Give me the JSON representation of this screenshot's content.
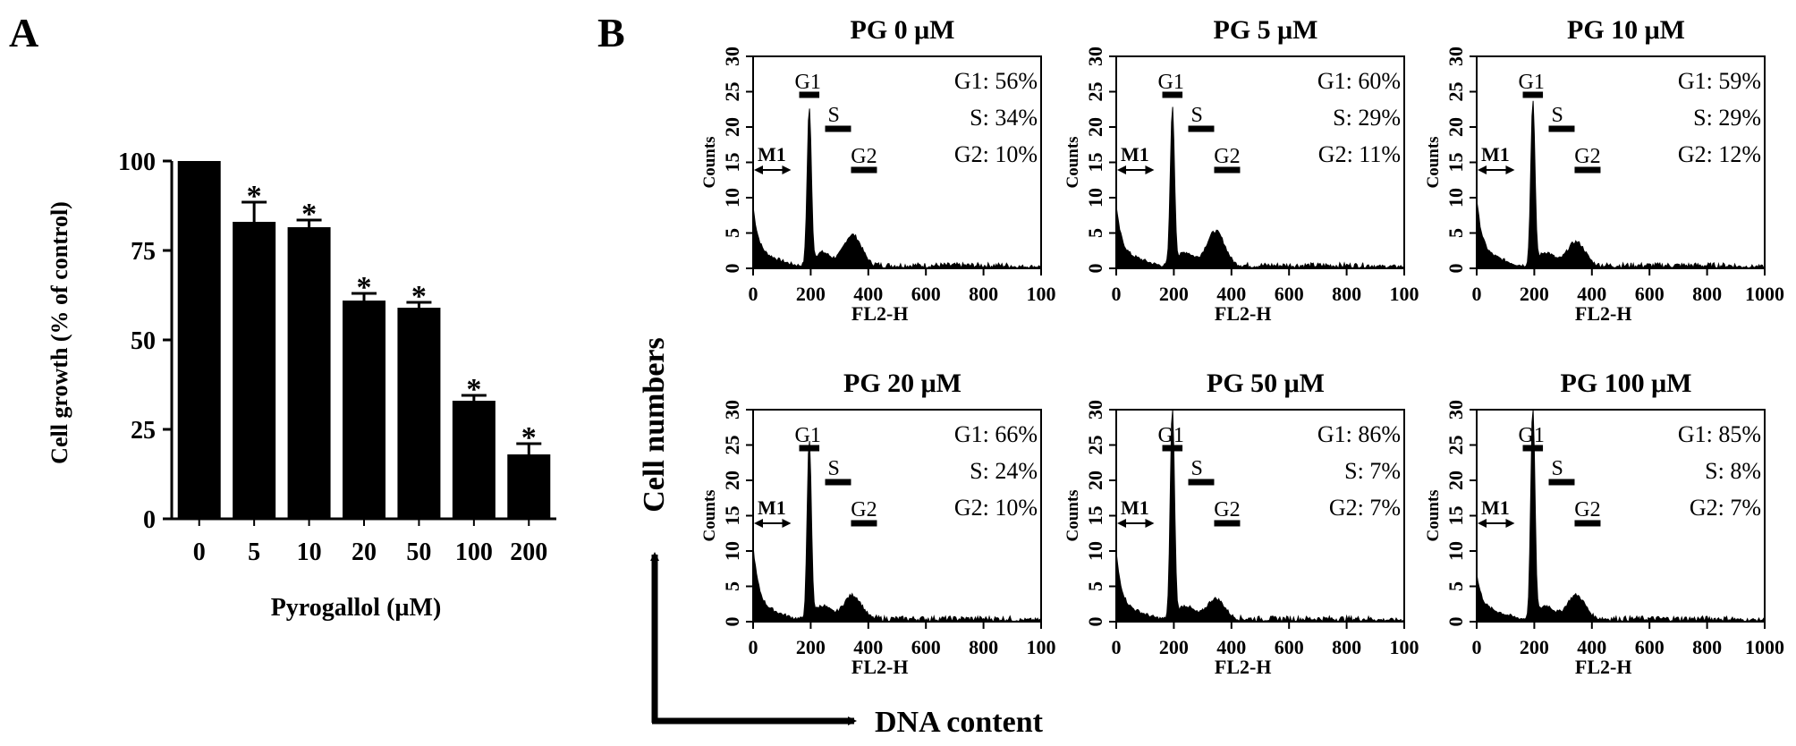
{
  "panel_a": {
    "letter": "A",
    "ylabel": "Cell growth (% of control)",
    "xlabel": "Pyrogallol (µM)",
    "star": "*"
  },
  "panel_b": {
    "letter": "B",
    "counts_label": "Counts",
    "fl2_label": "FL2-H",
    "cell_numbers": "Cell numbers",
    "dna_content": "DNA content",
    "marker_m1": "M1",
    "marker_g1": "G1",
    "marker_s": "S",
    "marker_g2": "G2",
    "y_ticks": [
      "0",
      "5",
      "10",
      "15",
      "20",
      "25",
      "30"
    ]
  },
  "chart_data": [
    {
      "type": "bar",
      "categories": [
        "0",
        "5",
        "10",
        "20",
        "50",
        "100",
        "200"
      ],
      "values": [
        100,
        83,
        81.5,
        61,
        59,
        33,
        18
      ],
      "errors": [
        0,
        5.5,
        2,
        2,
        1.5,
        1.5,
        3
      ],
      "significant": [
        false,
        true,
        true,
        true,
        true,
        true,
        true
      ],
      "ylabel": "Cell growth (% of control)",
      "xlabel": "Pyrogallol (µM)",
      "ylim": [
        0,
        100
      ],
      "yticks": [
        0,
        25,
        50,
        75,
        100
      ]
    },
    {
      "type": "area",
      "title": "PG 0 μM",
      "xlabel": "FL2-H",
      "ylabel": "Counts",
      "xlim": [
        0,
        1000
      ],
      "ylim": [
        0,
        30
      ],
      "xticks": [
        "0",
        "200",
        "400",
        "600",
        "800",
        "100"
      ],
      "phases": {
        "G1": "G1: 56%",
        "S": "S: 34%",
        "G2": "G2: 10%"
      },
      "peak": 22,
      "g2_height": 4.5,
      "sub_g1": 8
    },
    {
      "type": "area",
      "title": "PG 5 μM",
      "xlabel": "FL2-H",
      "ylabel": "Counts",
      "xlim": [
        0,
        1000
      ],
      "ylim": [
        0,
        30
      ],
      "xticks": [
        "0",
        "200",
        "400",
        "600",
        "800",
        "100"
      ],
      "phases": {
        "G1": "G1: 60%",
        "S": "S: 29%",
        "G2": "G2: 11%"
      },
      "peak": 22,
      "g2_height": 5,
      "sub_g1": 8
    },
    {
      "type": "area",
      "title": "PG 10 μM",
      "xlabel": "FL2-H",
      "ylabel": "Counts",
      "xlim": [
        0,
        1000
      ],
      "ylim": [
        0,
        30
      ],
      "xticks": [
        "0",
        "200",
        "400",
        "600",
        "800",
        "1000"
      ],
      "phases": {
        "G1": "G1: 59%",
        "S": "S: 29%",
        "G2": "G2: 12%"
      },
      "peak": 23,
      "g2_height": 3.5,
      "sub_g1": 9
    },
    {
      "type": "area",
      "title": "PG 20 μM",
      "xlabel": "FL2-H",
      "ylabel": "Counts",
      "xlim": [
        0,
        1000
      ],
      "ylim": [
        0,
        30
      ],
      "xticks": [
        "0",
        "200",
        "400",
        "600",
        "800",
        "100"
      ],
      "phases": {
        "G1": "G1: 66%",
        "S": "S: 24%",
        "G2": "G2: 10%"
      },
      "peak": 25,
      "g2_height": 3.5,
      "sub_g1": 10
    },
    {
      "type": "area",
      "title": "PG 50 μM",
      "xlabel": "FL2-H",
      "ylabel": "Counts",
      "xlim": [
        0,
        1000
      ],
      "ylim": [
        0,
        30
      ],
      "xticks": [
        "0",
        "200",
        "400",
        "600",
        "800",
        "100"
      ],
      "phases": {
        "G1": "G1: 86%",
        "S": "S: 7%",
        "G2": "G2: 7%"
      },
      "peak": 30,
      "g2_height": 3,
      "sub_g1": 9
    },
    {
      "type": "area",
      "title": "PG 100 μM",
      "xlabel": "FL2-H",
      "ylabel": "Counts",
      "xlim": [
        0,
        1000
      ],
      "ylim": [
        0,
        30
      ],
      "xticks": [
        "0",
        "200",
        "400",
        "600",
        "800",
        "1000"
      ],
      "phases": {
        "G1": "G1: 85%",
        "S": "S: 8%",
        "G2": "G2: 7%"
      },
      "peak": 30,
      "g2_height": 3.5,
      "sub_g1": 6
    }
  ]
}
